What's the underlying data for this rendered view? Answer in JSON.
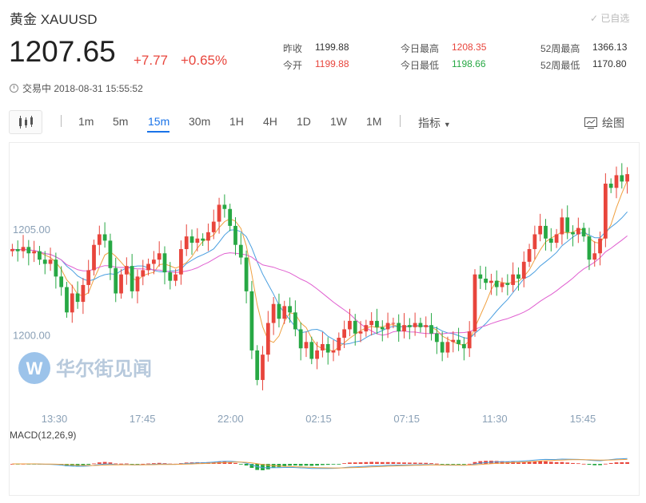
{
  "header": {
    "title": "黄金  XAUUSD",
    "watchlist_label": "已自选",
    "price": "1207.65",
    "change": "+7.77",
    "change_pct": "+0.65%",
    "status": "交易中 2018-08-31 15:55:52"
  },
  "stats": {
    "prev_close": {
      "label": "昨收",
      "value": "1199.88"
    },
    "open": {
      "label": "今开",
      "value": "1199.88"
    },
    "day_high": {
      "label": "今日最高",
      "value": "1208.35"
    },
    "day_low": {
      "label": "今日最低",
      "value": "1198.66"
    },
    "wk52_high": {
      "label": "52周最高",
      "value": "1366.13"
    },
    "wk52_low": {
      "label": "52周最低",
      "value": "1170.80"
    }
  },
  "toolbar": {
    "periods": [
      "1m",
      "5m",
      "15m",
      "30m",
      "1H",
      "4H",
      "1D",
      "1W",
      "1M"
    ],
    "active_period": "15m",
    "indicator_label": "指标",
    "draw_label": "绘图"
  },
  "colors": {
    "up": "#e8453c",
    "down": "#27a844",
    "accent": "#1a73e8",
    "ma_short": "#f0a040",
    "ma_mid": "#4a9fe0",
    "ma_long": "#e060d0"
  },
  "watermark": "华尔街见闻",
  "chart_data": {
    "type": "candlestick",
    "ylim": [
      1196.8,
      1208.6
    ],
    "y_ticks": [
      "1205.00",
      "1200.00"
    ],
    "y_tick_values": [
      1205.0,
      1200.0
    ],
    "x_ticks": [
      "13:30",
      "17:45",
      "22:00",
      "02:15",
      "07:15",
      "11:30",
      "15:45"
    ],
    "macd_label": "MACD(12,26,9)",
    "closes": [
      1204.1,
      1204.0,
      1204.2,
      1203.9,
      1204.0,
      1203.6,
      1203.4,
      1203.6,
      1202.8,
      1202.3,
      1201.1,
      1202.0,
      1201.6,
      1202.4,
      1203.1,
      1204.3,
      1204.8,
      1204.5,
      1203.2,
      1202.0,
      1202.9,
      1203.3,
      1202.1,
      1202.8,
      1203.1,
      1203.4,
      1203.6,
      1203.9,
      1203.0,
      1202.6,
      1202.9,
      1204.1,
      1204.7,
      1204.4,
      1204.6,
      1204.5,
      1204.9,
      1205.4,
      1206.2,
      1206.0,
      1205.2,
      1204.3,
      1203.7,
      1202.1,
      1199.3,
      1197.9,
      1199.1,
      1200.6,
      1201.5,
      1200.8,
      1201.4,
      1201.1,
      1200.3,
      1199.4,
      1199.7,
      1198.9,
      1199.3,
      1199.6,
      1199.2,
      1199.3,
      1199.9,
      1200.3,
      1200.7,
      1200.1,
      1200.2,
      1200.5,
      1200.7,
      1200.4,
      1200.3,
      1200.6,
      1200.6,
      1200.2,
      1200.5,
      1200.4,
      1200.6,
      1200.4,
      1200.5,
      1200.1,
      1199.7,
      1199.2,
      1199.7,
      1199.8,
      1199.6,
      1199.4,
      1200.2,
      1202.9,
      1202.7,
      1202.5,
      1202.6,
      1202.3,
      1202.5,
      1202.4,
      1202.9,
      1202.7,
      1203.5,
      1204.1,
      1204.8,
      1205.2,
      1204.6,
      1204.4,
      1204.8,
      1205.6,
      1204.9,
      1204.8,
      1205.1,
      1204.7,
      1203.6,
      1203.9,
      1204.6,
      1207.2,
      1207.0,
      1207.6,
      1207.3,
      1207.65
    ]
  }
}
